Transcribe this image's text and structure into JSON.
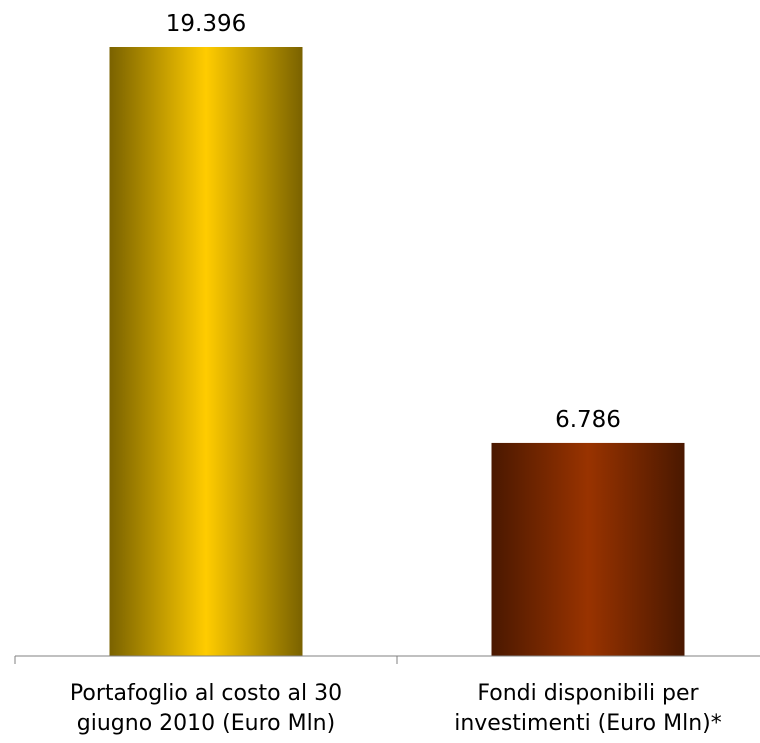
{
  "chart_data": {
    "type": "bar",
    "categories": [
      [
        "Portafoglio al costo al 30",
        "giugno 2010 (Euro Mln)"
      ],
      [
        "Fondi disponibili per",
        "investimenti (Euro Mln)*"
      ]
    ],
    "values": [
      19396,
      6786
    ],
    "value_labels": [
      "19.396",
      "6.786"
    ],
    "bar_colors": [
      {
        "edge": "#7a6200",
        "center": "#ffcc00"
      },
      {
        "edge": "#4a1800",
        "center": "#993300"
      }
    ],
    "ylim": [
      0,
      19396
    ],
    "grid": false,
    "legend": "none",
    "title": "",
    "xlabel": "",
    "ylabel": ""
  }
}
